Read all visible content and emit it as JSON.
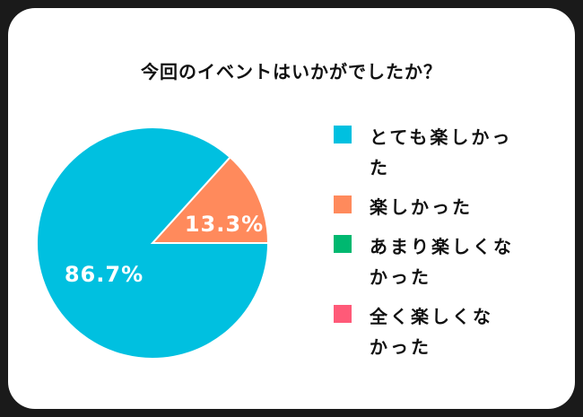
{
  "chart_data": {
    "type": "pie",
    "title": "今回のイベントはいかがでしたか？",
    "categories": [
      "とても楽しかった",
      "楽しかった",
      "あまり楽しくなかった",
      "全く楽しくなかった"
    ],
    "values": [
      86.7,
      13.3,
      0,
      0
    ],
    "data_labels": [
      "86.7%",
      "13.3%",
      "",
      ""
    ],
    "colors": [
      "#00c0e0",
      "#ff8a5c",
      "#00b870",
      "#ff5a78"
    ],
    "legend_position": "right",
    "legend": [
      {
        "label_line1": "とても楽しかっ",
        "label_line2": "た"
      },
      {
        "label_line1": "楽しかった",
        "label_line2": ""
      },
      {
        "label_line1": "あまり楽しくな",
        "label_line2": "かった"
      },
      {
        "label_line1": "全く楽しくな",
        "label_line2": "かった"
      }
    ]
  }
}
